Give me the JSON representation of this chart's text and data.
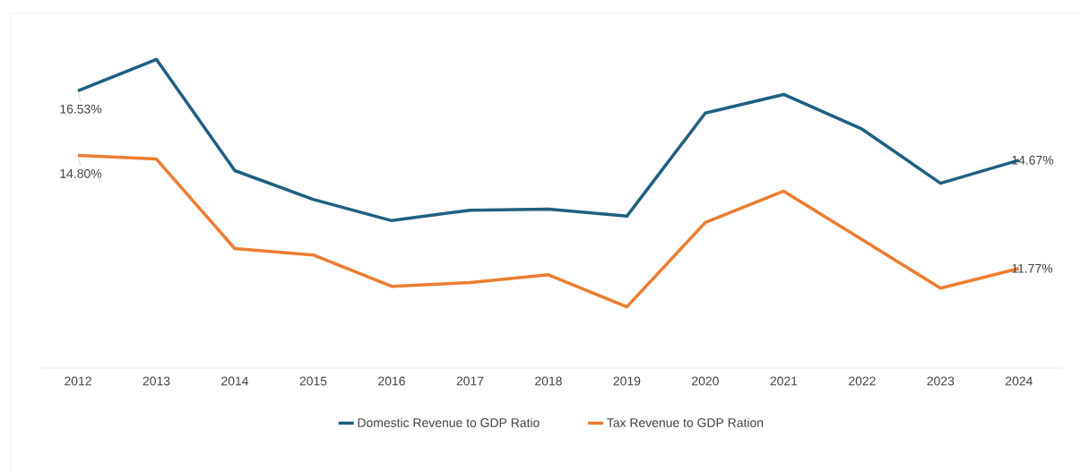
{
  "chart_data": {
    "type": "line",
    "categories": [
      "2012",
      "2013",
      "2014",
      "2015",
      "2016",
      "2017",
      "2018",
      "2019",
      "2020",
      "2021",
      "2022",
      "2023",
      "2024"
    ],
    "series": [
      {
        "name": "Domestic Revenue to GDP Ratio",
        "color": "#1f5f82",
        "values": [
          16.53,
          17.37,
          14.39,
          13.62,
          13.05,
          13.33,
          13.36,
          13.17,
          15.93,
          16.43,
          15.5,
          14.05,
          14.67
        ],
        "value_labels": [
          "16.53%",
          null,
          null,
          null,
          null,
          null,
          null,
          null,
          null,
          null,
          null,
          null,
          "14.67%"
        ]
      },
      {
        "name": "Tax Revenue to GDP Ration",
        "color": "#ed7d31",
        "values": [
          14.8,
          14.7,
          12.3,
          12.13,
          11.29,
          11.39,
          11.6,
          10.74,
          13.0,
          13.84,
          12.54,
          11.24,
          11.77
        ],
        "value_labels": [
          "14.80%",
          null,
          null,
          null,
          null,
          null,
          null,
          null,
          null,
          null,
          null,
          null,
          "11.77%"
        ]
      }
    ],
    "ylim": [
      9.1,
      18.6
    ],
    "tick_labels": "x",
    "grid": false,
    "legend": "bottom",
    "marker": "none",
    "line_style": "solid"
  }
}
